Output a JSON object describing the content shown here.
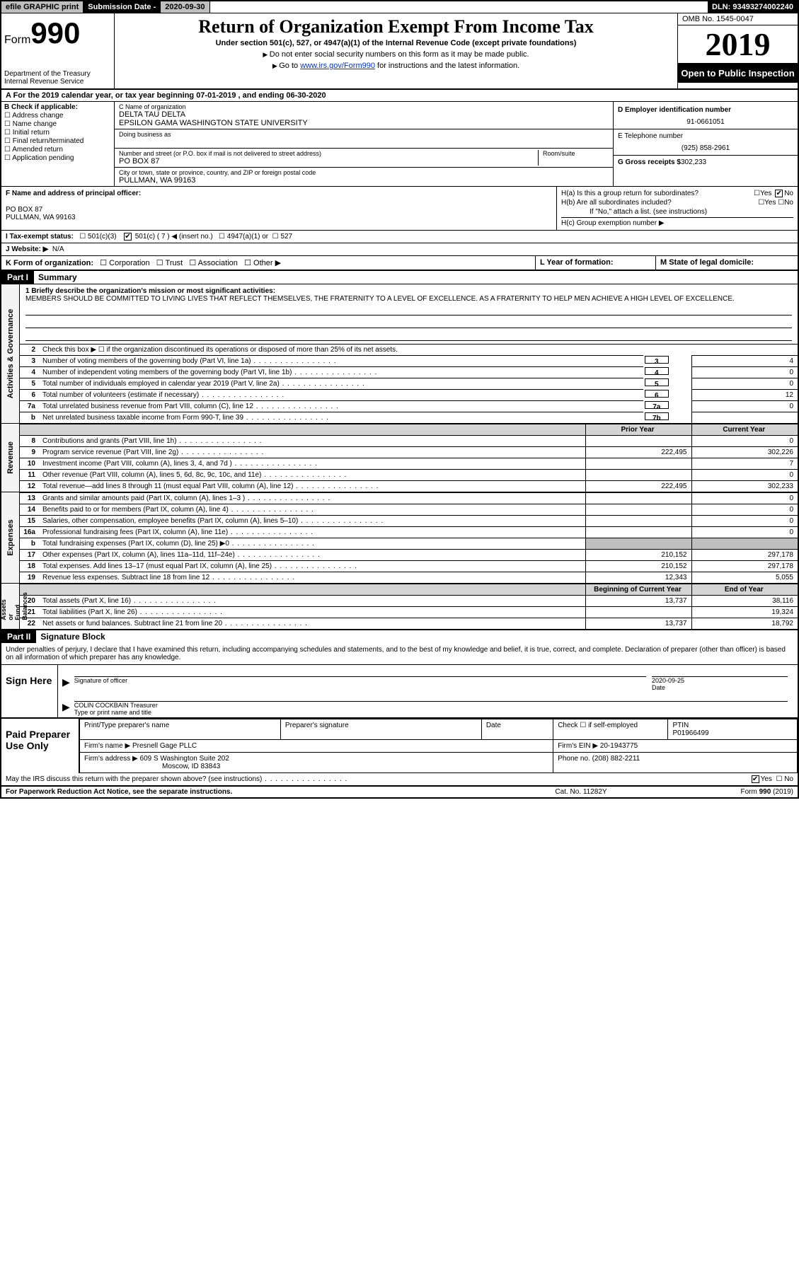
{
  "topbar": {
    "efile": "efile GRAPHIC print",
    "subdate_label": "Submission Date - ",
    "subdate": "2020-09-30",
    "dln": "DLN: 93493274002240"
  },
  "header": {
    "form_prefix": "Form",
    "form_num": "990",
    "dept": "Department of the Treasury\nInternal Revenue Service",
    "title": "Return of Organization Exempt From Income Tax",
    "subtitle": "Under section 501(c), 527, or 4947(a)(1) of the Internal Revenue Code (except private foundations)",
    "instr1": "Do not enter social security numbers on this form as it may be made public.",
    "instr2_prefix": "Go to ",
    "instr2_link": "www.irs.gov/Form990",
    "instr2_suffix": " for instructions and the latest information.",
    "omb": "OMB No. 1545-0047",
    "year": "2019",
    "open_public": "Open to Public Inspection"
  },
  "period": "A For the 2019 calendar year, or tax year beginning 07-01-2019    , and ending 06-30-2020",
  "col_b": {
    "title": "B Check if applicable:",
    "items": [
      "Address change",
      "Name change",
      "Initial return",
      "Final return/terminated",
      "Amended return",
      "Application pending"
    ]
  },
  "col_c": {
    "name_label": "C Name of organization",
    "name1": "DELTA TAU DELTA",
    "name2": "EPSILON GAMA WASHINGTON STATE UNIVERSITY",
    "dba_label": "Doing business as",
    "addr_label": "Number and street (or P.O. box if mail is not delivered to street address)",
    "room_label": "Room/suite",
    "addr": "PO BOX 87",
    "city_label": "City or town, state or province, country, and ZIP or foreign postal code",
    "city": "PULLMAN, WA  99163"
  },
  "col_d": {
    "ein_label": "D Employer identification number",
    "ein": "91-0661051",
    "phone_label": "E Telephone number",
    "phone": "(925) 858-2961",
    "gross_label": "G Gross receipts $",
    "gross": "302,233"
  },
  "col_f": {
    "label": "F  Name and address of principal officer:",
    "addr1": "PO BOX 87",
    "addr2": "PULLMAN, WA  99163"
  },
  "col_h": {
    "ha": "H(a)  Is this a group return for subordinates?",
    "hb": "H(b)  Are all subordinates included?",
    "hb_note": "If \"No,\" attach a list. (see instructions)",
    "hc": "H(c)  Group exemption number ▶"
  },
  "line_i": "I    Tax-exempt status:",
  "line_i_opts": [
    "501(c)(3)",
    "501(c) ( 7 ) ◀ (insert no.)",
    "4947(a)(1) or",
    "527"
  ],
  "line_j": "J   Website: ▶",
  "line_j_val": "N/A",
  "line_k": "K Form of organization:",
  "line_k_opts": [
    "Corporation",
    "Trust",
    "Association",
    "Other ▶"
  ],
  "line_l": "L Year of formation:",
  "line_m": "M State of legal domicile:",
  "part1": {
    "hdr": "Part I",
    "title": "Summary",
    "q1": "1  Briefly describe the organization's mission or most significant activities:",
    "mission": "MEMBERS SHOULD BE COMMITTED TO LIVING LIVES THAT REFLECT THEMSELVES, THE FRATERNITY TO A LEVEL OF EXCELLENCE. AS A FRATERNITY TO HELP MEN ACHIEVE A HIGH LEVEL OF EXCELLENCE."
  },
  "gov_lines": [
    {
      "n": "2",
      "d": "Check this box ▶ ☐  if the organization discontinued its operations or disposed of more than 25% of its net assets.",
      "b": "",
      "v": ""
    },
    {
      "n": "3",
      "d": "Number of voting members of the governing body (Part VI, line 1a)",
      "b": "3",
      "v": "4"
    },
    {
      "n": "4",
      "d": "Number of independent voting members of the governing body (Part VI, line 1b)",
      "b": "4",
      "v": "0"
    },
    {
      "n": "5",
      "d": "Total number of individuals employed in calendar year 2019 (Part V, line 2a)",
      "b": "5",
      "v": "0"
    },
    {
      "n": "6",
      "d": "Total number of volunteers (estimate if necessary)",
      "b": "6",
      "v": "12"
    },
    {
      "n": "7a",
      "d": "Total unrelated business revenue from Part VIII, column (C), line 12",
      "b": "7a",
      "v": "0"
    },
    {
      "n": "b",
      "d": "Net unrelated business taxable income from Form 990-T, line 39",
      "b": "7b",
      "v": ""
    }
  ],
  "rev_hdr": {
    "py": "Prior Year",
    "cy": "Current Year"
  },
  "rev_lines": [
    {
      "n": "8",
      "d": "Contributions and grants (Part VIII, line 1h)",
      "py": "",
      "cy": "0"
    },
    {
      "n": "9",
      "d": "Program service revenue (Part VIII, line 2g)",
      "py": "222,495",
      "cy": "302,226"
    },
    {
      "n": "10",
      "d": "Investment income (Part VIII, column (A), lines 3, 4, and 7d )",
      "py": "",
      "cy": "7"
    },
    {
      "n": "11",
      "d": "Other revenue (Part VIII, column (A), lines 5, 6d, 8c, 9c, 10c, and 11e)",
      "py": "",
      "cy": "0"
    },
    {
      "n": "12",
      "d": "Total revenue—add lines 8 through 11 (must equal Part VIII, column (A), line 12)",
      "py": "222,495",
      "cy": "302,233"
    }
  ],
  "exp_lines": [
    {
      "n": "13",
      "d": "Grants and similar amounts paid (Part IX, column (A), lines 1–3 )",
      "py": "",
      "cy": "0"
    },
    {
      "n": "14",
      "d": "Benefits paid to or for members (Part IX, column (A), line 4)",
      "py": "",
      "cy": "0"
    },
    {
      "n": "15",
      "d": "Salaries, other compensation, employee benefits (Part IX, column (A), lines 5–10)",
      "py": "",
      "cy": "0"
    },
    {
      "n": "16a",
      "d": "Professional fundraising fees (Part IX, column (A), line 11e)",
      "py": "",
      "cy": "0"
    },
    {
      "n": "b",
      "d": "Total fundraising expenses (Part IX, column (D), line 25) ▶0",
      "py": "SHADE",
      "cy": "SHADE"
    },
    {
      "n": "17",
      "d": "Other expenses (Part IX, column (A), lines 11a–11d, 11f–24e)",
      "py": "210,152",
      "cy": "297,178"
    },
    {
      "n": "18",
      "d": "Total expenses. Add lines 13–17 (must equal Part IX, column (A), line 25)",
      "py": "210,152",
      "cy": "297,178"
    },
    {
      "n": "19",
      "d": "Revenue less expenses. Subtract line 18 from line 12",
      "py": "12,343",
      "cy": "5,055"
    }
  ],
  "na_hdr": {
    "py": "Beginning of Current Year",
    "cy": "End of Year"
  },
  "na_lines": [
    {
      "n": "20",
      "d": "Total assets (Part X, line 16)",
      "py": "13,737",
      "cy": "38,116"
    },
    {
      "n": "21",
      "d": "Total liabilities (Part X, line 26)",
      "py": "",
      "cy": "19,324"
    },
    {
      "n": "22",
      "d": "Net assets or fund balances. Subtract line 21 from line 20",
      "py": "13,737",
      "cy": "18,792"
    }
  ],
  "vtabs": {
    "gov": "Activities & Governance",
    "rev": "Revenue",
    "exp": "Expenses",
    "na": "Net Assets or\nFund Balances"
  },
  "part2": {
    "hdr": "Part II",
    "title": "Signature Block",
    "decl": "Under penalties of perjury, I declare that I have examined this return, including accompanying schedules and statements, and to the best of my knowledge and belief, it is true, correct, and complete. Declaration of preparer (other than officer) is based on all information of which preparer has any knowledge."
  },
  "sign": {
    "here": "Sign Here",
    "sig_officer": "Signature of officer",
    "date_label": "Date",
    "date": "2020-09-25",
    "name": "COLIN COCKBAIN Treasurer",
    "name_label": "Type or print name and title"
  },
  "paid": {
    "title": "Paid Preparer Use Only",
    "h1": "Print/Type preparer's name",
    "h2": "Preparer's signature",
    "h3": "Date",
    "h4": "Check ☐ if self-employed",
    "h5": "PTIN",
    "ptin": "P01966499",
    "firm_label": "Firm's name    ▶",
    "firm": "Presnell Gage PLLC",
    "ein_label": "Firm's EIN ▶",
    "ein": "20-1943775",
    "addr_label": "Firm's address ▶",
    "addr1": "609 S Washington Suite 202",
    "addr2": "Moscow, ID  83843",
    "phone_label": "Phone no.",
    "phone": "(208) 882-2211",
    "discuss": "May the IRS discuss this return with the preparer shown above? (see instructions)"
  },
  "footer": {
    "f1": "For Paperwork Reduction Act Notice, see the separate instructions.",
    "f2": "Cat. No. 11282Y",
    "f3": "Form 990 (2019)"
  }
}
